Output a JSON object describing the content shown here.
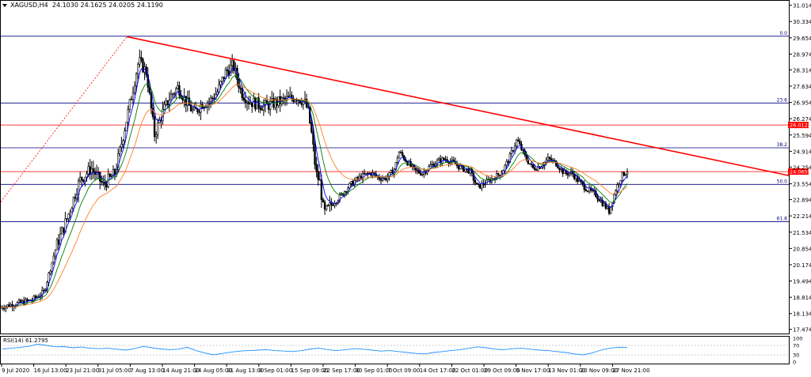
{
  "header": {
    "symbol_label": "XAGUSD,H4",
    "ohlc": "24.1030 24.1625 24.0205 24.1190"
  },
  "rsi_header": "RSI(14) 61.2795",
  "colors": {
    "background": "#ffffff",
    "candles": "#000000",
    "ma_fast": "#0000ff",
    "ma_mid": "#008000",
    "ma_slow": "#ff7f27",
    "trendline": "#ff0000",
    "fib_lines": "#00007f",
    "horizontal_red": "#ff0000",
    "price_badge": "#ff0000",
    "rsi_line": "#1e90ff"
  },
  "chart_data": [
    {
      "type": "candlestick",
      "symbol": "XAGUSD",
      "timeframe": "H4",
      "y_ticks": [
        "31.0140",
        "30.3340",
        "29.6540",
        "28.9740",
        "28.3140",
        "27.6340",
        "26.9540",
        "26.2740",
        "25.5940",
        "24.9140",
        "24.2540",
        "23.5540",
        "22.8940",
        "22.2140",
        "21.5340",
        "20.8540",
        "20.1740",
        "19.4940",
        "18.8140",
        "18.1340",
        "17.4740"
      ],
      "ylim": [
        17.3,
        31.2
      ],
      "x_ticks": [
        "9 Jul 2020",
        "16 Jul 13:00",
        "23 Jul 21:00",
        "31 Jul 05:00",
        "7 Aug 13:00",
        "14 Aug 21:00",
        "24 Aug 05:00",
        "31 Aug 13:00",
        "8 Sep 01:00",
        "15 Sep 09:00",
        "22 Sep 17:00",
        "30 Sep 01:00",
        "7 Oct 09:00",
        "14 Oct 17:00",
        "22 Oct 01:00",
        "29 Oct 09:00",
        "5 Nov 17:00",
        "13 Nov 01:00",
        "20 Nov 09:00",
        "27 Nov 21:00"
      ],
      "price_path": [
        [
          0,
          18.4
        ],
        [
          0.02,
          18.55
        ],
        [
          0.04,
          18.7
        ],
        [
          0.055,
          19.05
        ],
        [
          0.07,
          20.9
        ],
        [
          0.085,
          22.2
        ],
        [
          0.1,
          23.7
        ],
        [
          0.115,
          24.2
        ],
        [
          0.13,
          23.5
        ],
        [
          0.145,
          24.0
        ],
        [
          0.16,
          26.3
        ],
        [
          0.175,
          28.7
        ],
        [
          0.185,
          28.2
        ],
        [
          0.195,
          25.6
        ],
        [
          0.205,
          26.5
        ],
        [
          0.215,
          27.2
        ],
        [
          0.225,
          27.6
        ],
        [
          0.235,
          27.0
        ],
        [
          0.245,
          26.5
        ],
        [
          0.255,
          26.9
        ],
        [
          0.265,
          27.0
        ],
        [
          0.275,
          27.4
        ],
        [
          0.285,
          28.2
        ],
        [
          0.295,
          28.5
        ],
        [
          0.305,
          27.4
        ],
        [
          0.315,
          27.0
        ],
        [
          0.325,
          26.9
        ],
        [
          0.335,
          26.8
        ],
        [
          0.345,
          26.9
        ],
        [
          0.355,
          27.0
        ],
        [
          0.365,
          27.1
        ],
        [
          0.375,
          27.2
        ],
        [
          0.385,
          27.0
        ],
        [
          0.39,
          26.6
        ],
        [
          0.395,
          25.5
        ],
        [
          0.4,
          24.0
        ],
        [
          0.405,
          23.6
        ],
        [
          0.41,
          22.3
        ],
        [
          0.42,
          22.7
        ],
        [
          0.43,
          23.0
        ],
        [
          0.44,
          23.4
        ],
        [
          0.45,
          23.7
        ],
        [
          0.46,
          23.9
        ],
        [
          0.47,
          24.0
        ],
        [
          0.48,
          23.8
        ],
        [
          0.49,
          23.8
        ],
        [
          0.5,
          24.2
        ],
        [
          0.505,
          24.9
        ],
        [
          0.515,
          24.5
        ],
        [
          0.525,
          24.1
        ],
        [
          0.535,
          24.0
        ],
        [
          0.545,
          24.3
        ],
        [
          0.555,
          24.5
        ],
        [
          0.565,
          24.6
        ],
        [
          0.575,
          24.4
        ],
        [
          0.585,
          24.2
        ],
        [
          0.595,
          24.1
        ],
        [
          0.605,
          23.4
        ],
        [
          0.615,
          23.6
        ],
        [
          0.625,
          23.8
        ],
        [
          0.635,
          24.0
        ],
        [
          0.645,
          24.6
        ],
        [
          0.655,
          25.4
        ],
        [
          0.665,
          24.7
        ],
        [
          0.675,
          24.2
        ],
        [
          0.685,
          24.3
        ],
        [
          0.695,
          24.6
        ],
        [
          0.705,
          24.4
        ],
        [
          0.715,
          24.0
        ],
        [
          0.725,
          24.0
        ],
        [
          0.735,
          23.6
        ],
        [
          0.745,
          23.3
        ],
        [
          0.755,
          23.1
        ],
        [
          0.765,
          22.7
        ],
        [
          0.772,
          22.4
        ],
        [
          0.78,
          23.3
        ],
        [
          0.788,
          23.9
        ],
        [
          0.795,
          24.1
        ]
      ],
      "moving_averages": [
        "fast",
        "mid",
        "slow"
      ],
      "trendline": {
        "from": {
          "x": 0.16,
          "price": 29.7
        },
        "to": {
          "x": 1.0,
          "price": 23.9
        },
        "color": "#ff0000"
      },
      "fib_levels": [
        {
          "label": "0.0",
          "price": 29.72
        },
        {
          "label": "23.6",
          "price": 26.93
        },
        {
          "label": "38.2",
          "price": 25.06
        },
        {
          "label": "50.0",
          "price": 23.53
        },
        {
          "label": "61.8",
          "price": 21.97
        }
      ],
      "horizontal_lines": [
        {
          "price": 26.0122,
          "label": "26.0122"
        },
        {
          "price": 24.0655,
          "label": "24.0655"
        }
      ],
      "dotted_line": {
        "from": {
          "x": 0.0,
          "price": 22.8
        },
        "to": {
          "x": 0.16,
          "price": 29.7
        }
      }
    },
    {
      "type": "line",
      "name": "RSI(14) 61.2795",
      "y_ticks": [
        "100",
        "70",
        "30",
        "0"
      ],
      "ylim": [
        0,
        100
      ],
      "levels": [
        70,
        30
      ],
      "values": [
        55,
        58,
        62,
        66,
        75,
        70,
        64,
        65,
        60,
        63,
        58,
        56,
        58,
        54,
        50,
        56,
        66,
        60,
        55,
        52,
        54,
        62,
        48,
        38,
        30,
        36,
        42,
        46,
        48,
        50,
        52,
        48,
        46,
        44,
        48,
        55,
        58,
        52,
        48,
        52,
        56,
        54,
        50,
        46,
        48,
        44,
        40,
        36,
        34,
        40,
        44,
        48,
        52,
        58,
        64,
        60,
        54,
        52,
        56,
        58,
        54,
        50,
        48,
        44,
        40,
        34,
        30,
        38,
        50,
        58,
        62,
        61
      ]
    }
  ]
}
